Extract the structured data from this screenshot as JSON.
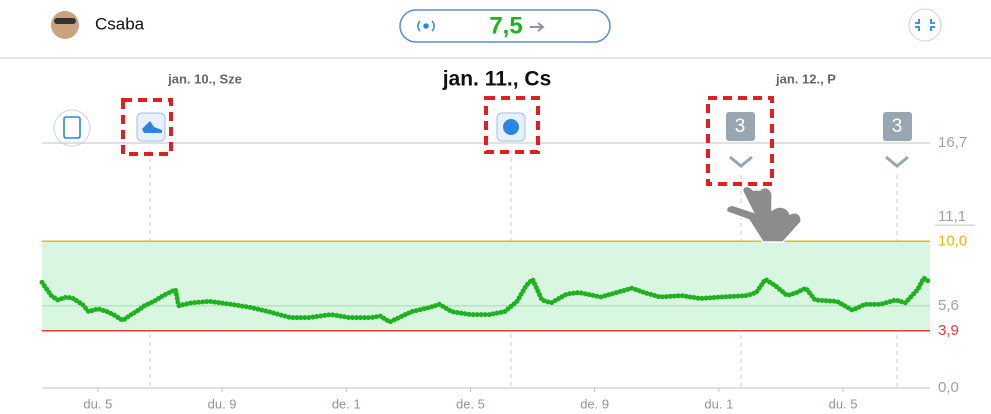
{
  "header": {
    "user": "Csaba",
    "glucose": "7,5"
  },
  "days": [
    "jan. 10., Sze",
    "jan. 11., Cs",
    "jan. 12., P"
  ],
  "badges": [
    "3",
    "3"
  ],
  "chart_data": {
    "type": "scatter",
    "color": "#1fb21f",
    "x": [
      15.2,
      15.5,
      15.7,
      16.0,
      16.2,
      16.5,
      16.7,
      17.0,
      17.3,
      17.5,
      17.8,
      18.0,
      18.3,
      18.5,
      18.8,
      19.1,
      19.3,
      19.5,
      19.6,
      20.0,
      20.6,
      21.3,
      21.9,
      22.5,
      23.2,
      23.8,
      24.5,
      25.1,
      25.8,
      26.1,
      26.4,
      26.7,
      27.1,
      27.7,
      28.0,
      28.4,
      29.0,
      29.6,
      30.1,
      30.5,
      30.8,
      31.0,
      31.3,
      31.6,
      32.1,
      32.5,
      33.2,
      33.7,
      34.2,
      34.6,
      35.1,
      35.8,
      36.4,
      37.1,
      37.9,
      38.2,
      38.5,
      38.8,
      39.2,
      39.5,
      39.8,
      40.1,
      40.8,
      41.3,
      41.7,
      42.2,
      42.7,
      43.0,
      43.4,
      43.6,
      43.8
    ],
    "values": [
      7.2,
      6.3,
      6.0,
      6.2,
      6.1,
      5.7,
      5.2,
      5.4,
      5.2,
      5.0,
      4.6,
      4.9,
      5.3,
      5.6,
      5.9,
      6.3,
      6.5,
      6.7,
      5.6,
      5.8,
      5.9,
      5.7,
      5.5,
      5.2,
      4.8,
      4.8,
      5.0,
      4.8,
      4.8,
      4.9,
      4.5,
      4.8,
      5.2,
      5.5,
      5.7,
      5.2,
      5.0,
      5.0,
      5.2,
      5.9,
      7.0,
      7.4,
      6.0,
      5.8,
      6.4,
      6.5,
      6.2,
      6.5,
      6.8,
      6.5,
      6.2,
      6.3,
      6.1,
      6.2,
      6.3,
      6.5,
      7.4,
      7.0,
      6.3,
      6.5,
      6.8,
      6.0,
      5.9,
      5.3,
      5.7,
      5.7,
      6.0,
      5.8,
      6.7,
      7.5,
      7.2
    ],
    "xlim": [
      15.2,
      43.8
    ],
    "xticks": [
      {
        "value": 17,
        "label": "du. 5"
      },
      {
        "value": 21,
        "label": "du. 9"
      },
      {
        "value": 25,
        "label": "de. 1"
      },
      {
        "value": 29,
        "label": "de. 5"
      },
      {
        "value": 33,
        "label": "de. 9"
      },
      {
        "value": 37,
        "label": "du. 1"
      },
      {
        "value": 41,
        "label": "du. 5"
      }
    ],
    "ylim": [
      0,
      16.7
    ],
    "yticks": [
      {
        "value": 0,
        "label": "0,0",
        "color": "#9aa3ad"
      },
      {
        "value": 3.9,
        "label": "3,9",
        "color": "#e53935"
      },
      {
        "value": 5.6,
        "label": "5,6",
        "color": "#9aa3ad"
      },
      {
        "value": 10,
        "label": "10,0",
        "color": "#e8b800"
      },
      {
        "value": 11.1,
        "label": "11,1",
        "color": "#9aa3ad"
      },
      {
        "value": 16.7,
        "label": "16,7",
        "color": "#9aa3ad"
      }
    ],
    "target_color": "#d9f6e1"
  }
}
